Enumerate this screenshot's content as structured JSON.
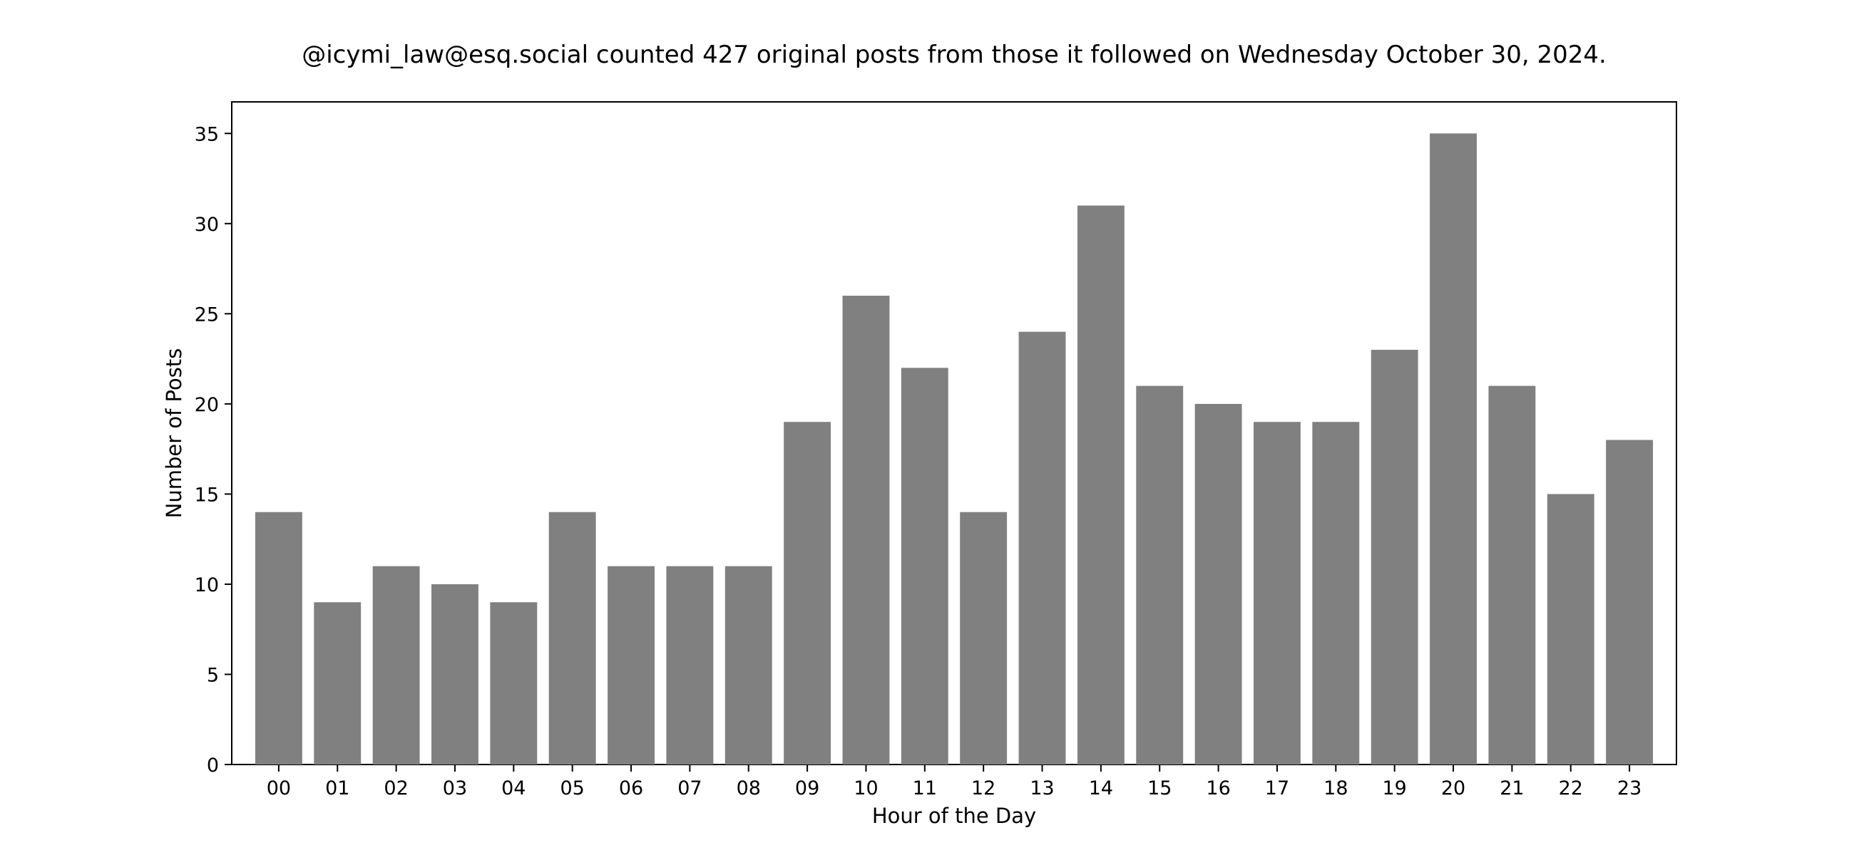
{
  "chart_data": {
    "type": "bar",
    "title": "@icymi_law@esq.social counted 427 original posts from those it followed on Wednesday October 30, 2024.",
    "xlabel": "Hour of the Day",
    "ylabel": "Number of Posts",
    "categories": [
      "00",
      "01",
      "02",
      "03",
      "04",
      "05",
      "06",
      "07",
      "08",
      "09",
      "10",
      "11",
      "12",
      "13",
      "14",
      "15",
      "16",
      "17",
      "18",
      "19",
      "20",
      "21",
      "22",
      "23"
    ],
    "values": [
      14,
      9,
      11,
      10,
      9,
      14,
      11,
      11,
      11,
      19,
      26,
      22,
      14,
      24,
      31,
      21,
      20,
      19,
      19,
      23,
      35,
      21,
      15,
      18
    ],
    "ylim": [
      0,
      36.75
    ],
    "yticks": [
      0,
      5,
      10,
      15,
      20,
      25,
      30,
      35
    ],
    "grid": false,
    "legend": "none",
    "bar_color": "#808080"
  }
}
